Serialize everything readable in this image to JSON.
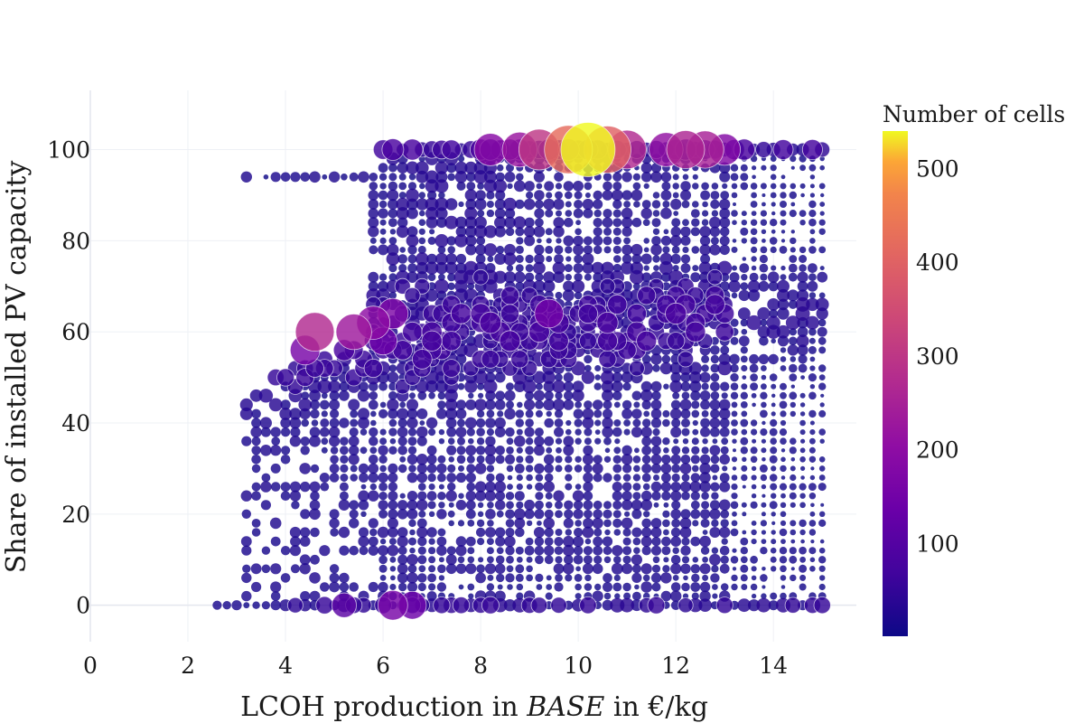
{
  "chart_data": {
    "type": "scatter",
    "title": "",
    "xlabel": "LCOH production in BASE in €/kg",
    "xlabel_parts": {
      "before": "LCOH production in ",
      "italic": "BASE",
      "after": " in €/kg"
    },
    "ylabel": "Share of installed PV capacity",
    "xlim": [
      0,
      15.7
    ],
    "ylim": [
      -8,
      113
    ],
    "x_ticks": [
      0,
      2,
      4,
      6,
      8,
      10,
      12,
      14
    ],
    "y_ticks": [
      0,
      20,
      40,
      60,
      80,
      100
    ],
    "grid": true,
    "colorbar": {
      "title": "Number of cells",
      "range": [
        1,
        540
      ],
      "ticks": [
        100,
        200,
        300,
        400,
        500
      ],
      "colorscale": "plasma"
    },
    "series": [
      {
        "name": "cells",
        "description": "bubble scatter; marker size and color encode number of cells",
        "x_grid": {
          "start": 2.6,
          "end": 15.0,
          "step": 0.2
        },
        "y_grid": {
          "start": 0,
          "end": 100,
          "step": 2
        },
        "highlights": [
          {
            "x": 10.2,
            "y": 100,
            "n": 540
          },
          {
            "x": 9.8,
            "y": 100,
            "n": 420
          },
          {
            "x": 10.6,
            "y": 100,
            "n": 400
          },
          {
            "x": 9.2,
            "y": 100,
            "n": 300
          },
          {
            "x": 11.0,
            "y": 100,
            "n": 270
          },
          {
            "x": 12.2,
            "y": 100,
            "n": 260
          },
          {
            "x": 12.6,
            "y": 100,
            "n": 250
          },
          {
            "x": 8.8,
            "y": 100,
            "n": 220
          },
          {
            "x": 11.8,
            "y": 100,
            "n": 210
          },
          {
            "x": 8.2,
            "y": 100,
            "n": 190
          },
          {
            "x": 13.0,
            "y": 100,
            "n": 180
          },
          {
            "x": 4.6,
            "y": 60,
            "n": 270
          },
          {
            "x": 5.4,
            "y": 60,
            "n": 230
          },
          {
            "x": 5.8,
            "y": 62,
            "n": 200
          },
          {
            "x": 6.2,
            "y": 64,
            "n": 170
          },
          {
            "x": 4.4,
            "y": 56,
            "n": 160
          },
          {
            "x": 6.0,
            "y": 58,
            "n": 140
          },
          {
            "x": 9.4,
            "y": 64,
            "n": 150
          },
          {
            "x": 6.2,
            "y": 0,
            "n": 160
          },
          {
            "x": 6.6,
            "y": 0,
            "n": 140
          },
          {
            "x": 5.2,
            "y": 0,
            "n": 110
          }
        ]
      }
    ]
  }
}
